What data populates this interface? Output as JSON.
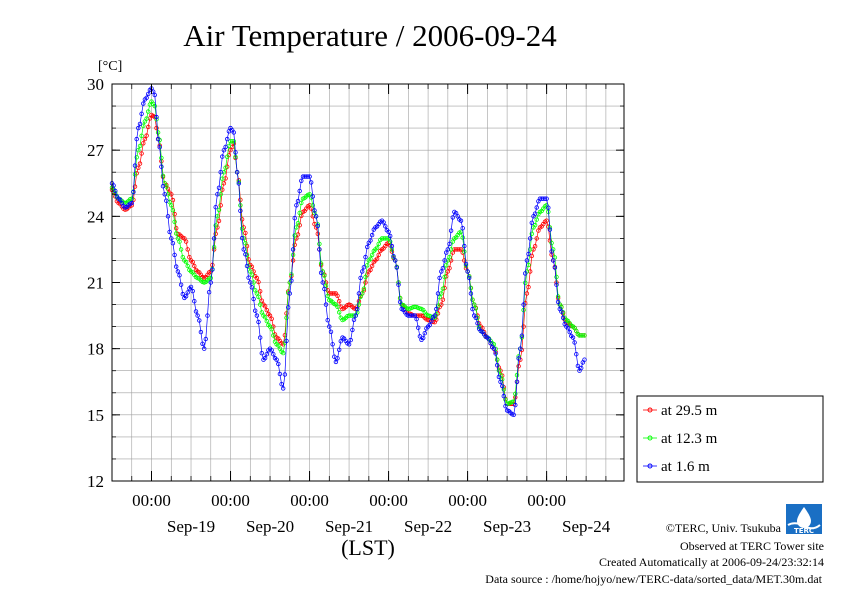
{
  "chart_data": {
    "type": "line",
    "title": "Air Temperature / 2006-09-24",
    "y_unit": "[°C]",
    "xlabel": "(LST)",
    "ylim": [
      12,
      30
    ],
    "y_ticks": [
      12,
      15,
      18,
      21,
      24,
      27,
      30
    ],
    "x_range": [
      "2006-09-18T12:00",
      "2006-09-24T23:30"
    ],
    "x_major_ticks": [
      "2006-09-19T00:00",
      "2006-09-20T00:00",
      "2006-09-21T00:00",
      "2006-09-22T00:00",
      "2006-09-23T00:00",
      "2006-09-24T00:00"
    ],
    "x_tick_time_label": "00:00",
    "day_labels": [
      {
        "at": "2006-09-19T12:00",
        "label": "Sep-19"
      },
      {
        "at": "2006-09-20T12:00",
        "label": "Sep-20"
      },
      {
        "at": "2006-09-21T12:00",
        "label": "Sep-21"
      },
      {
        "at": "2006-09-22T12:00",
        "label": "Sep-22"
      },
      {
        "at": "2006-09-23T12:00",
        "label": "Sep-23"
      },
      {
        "at": "2006-09-24T12:00",
        "label": "Sep-24"
      }
    ],
    "grid": true,
    "legend_position": "right-bottom",
    "series": [
      {
        "name": "at 29.5 m",
        "color": "#ff0000",
        "points": [
          [
            "2006-09-18T12:00",
            25.2
          ],
          [
            "2006-09-18T14:00",
            24.6
          ],
          [
            "2006-09-18T16:00",
            24.3
          ],
          [
            "2006-09-18T18:00",
            24.5
          ],
          [
            "2006-09-18T20:00",
            26.2
          ],
          [
            "2006-09-18T22:00",
            27.5
          ],
          [
            "2006-09-19T00:00",
            28.6
          ],
          [
            "2006-09-19T01:00",
            28.5
          ],
          [
            "2006-09-19T02:00",
            27.5
          ],
          [
            "2006-09-19T04:00",
            25.5
          ],
          [
            "2006-09-19T06:00",
            25.0
          ],
          [
            "2006-09-19T08:00",
            23.2
          ],
          [
            "2006-09-19T10:00",
            23.0
          ],
          [
            "2006-09-19T12:00",
            22.0
          ],
          [
            "2006-09-19T14:00",
            21.5
          ],
          [
            "2006-09-19T16:00",
            21.2
          ],
          [
            "2006-09-19T18:00",
            21.5
          ],
          [
            "2006-09-19T20:00",
            23.5
          ],
          [
            "2006-09-19T22:00",
            25.5
          ],
          [
            "2006-09-20T00:00",
            27.0
          ],
          [
            "2006-09-20T01:00",
            27.3
          ],
          [
            "2006-09-20T02:00",
            26.0
          ],
          [
            "2006-09-20T04:00",
            23.5
          ],
          [
            "2006-09-20T06:00",
            21.8
          ],
          [
            "2006-09-20T08:00",
            21.2
          ],
          [
            "2006-09-20T10:00",
            20.0
          ],
          [
            "2006-09-20T12:00",
            19.5
          ],
          [
            "2006-09-20T14:00",
            18.5
          ],
          [
            "2006-09-20T16:00",
            18.2
          ],
          [
            "2006-09-20T18:00",
            21.0
          ],
          [
            "2006-09-20T20:00",
            23.0
          ],
          [
            "2006-09-20T22:00",
            24.2
          ],
          [
            "2006-09-21T00:00",
            24.5
          ],
          [
            "2006-09-21T02:00",
            23.5
          ],
          [
            "2006-09-21T04:00",
            21.5
          ],
          [
            "2006-09-21T06:00",
            20.5
          ],
          [
            "2006-09-21T08:00",
            20.5
          ],
          [
            "2006-09-21T10:00",
            19.8
          ],
          [
            "2006-09-21T12:00",
            20.0
          ],
          [
            "2006-09-21T14:00",
            19.8
          ],
          [
            "2006-09-21T16:00",
            20.5
          ],
          [
            "2006-09-21T18:00",
            21.5
          ],
          [
            "2006-09-21T20:00",
            22.0
          ],
          [
            "2006-09-21T22:00",
            22.5
          ],
          [
            "2006-09-22T00:00",
            22.8
          ],
          [
            "2006-09-22T02:00",
            22.0
          ],
          [
            "2006-09-22T04:00",
            20.0
          ],
          [
            "2006-09-22T06:00",
            19.6
          ],
          [
            "2006-09-22T08:00",
            19.5
          ],
          [
            "2006-09-22T10:00",
            19.5
          ],
          [
            "2006-09-22T12:00",
            19.3
          ],
          [
            "2006-09-22T14:00",
            19.2
          ],
          [
            "2006-09-22T16:00",
            20.0
          ],
          [
            "2006-09-22T18:00",
            21.5
          ],
          [
            "2006-09-22T20:00",
            22.5
          ],
          [
            "2006-09-22T22:00",
            22.5
          ],
          [
            "2006-09-23T00:00",
            21.5
          ],
          [
            "2006-09-23T02:00",
            20.0
          ],
          [
            "2006-09-23T04:00",
            19.0
          ],
          [
            "2006-09-23T06:00",
            18.5
          ],
          [
            "2006-09-23T08:00",
            18.0
          ],
          [
            "2006-09-23T10:00",
            17.0
          ],
          [
            "2006-09-23T12:00",
            15.5
          ],
          [
            "2006-09-23T14:00",
            15.5
          ],
          [
            "2006-09-23T16:00",
            17.5
          ],
          [
            "2006-09-23T18:00",
            20.5
          ],
          [
            "2006-09-23T20:00",
            22.5
          ],
          [
            "2006-09-23T22:00",
            23.5
          ],
          [
            "2006-09-24T00:00",
            23.8
          ],
          [
            "2006-09-24T02:00",
            22.0
          ],
          [
            "2006-09-24T04:00",
            20.0
          ],
          [
            "2006-09-24T06:00",
            19.2
          ],
          [
            "2006-09-24T08:00",
            19.0
          ],
          [
            "2006-09-24T10:00",
            18.6
          ],
          [
            "2006-09-24T11:30",
            18.6
          ]
        ]
      },
      {
        "name": "at 12.3 m",
        "color": "#00ff00",
        "points": [
          [
            "2006-09-18T12:00",
            25.3
          ],
          [
            "2006-09-18T14:00",
            24.8
          ],
          [
            "2006-09-18T16:00",
            24.6
          ],
          [
            "2006-09-18T18:00",
            24.8
          ],
          [
            "2006-09-18T20:00",
            27.0
          ],
          [
            "2006-09-18T22:00",
            28.3
          ],
          [
            "2006-09-19T00:00",
            29.2
          ],
          [
            "2006-09-19T01:00",
            29.0
          ],
          [
            "2006-09-19T02:00",
            27.8
          ],
          [
            "2006-09-19T04:00",
            25.5
          ],
          [
            "2006-09-19T06:00",
            24.5
          ],
          [
            "2006-09-19T08:00",
            23.0
          ],
          [
            "2006-09-19T10:00",
            22.0
          ],
          [
            "2006-09-19T12:00",
            21.5
          ],
          [
            "2006-09-19T14:00",
            21.2
          ],
          [
            "2006-09-19T16:00",
            21.0
          ],
          [
            "2006-09-19T18:00",
            21.2
          ],
          [
            "2006-09-19T20:00",
            24.0
          ],
          [
            "2006-09-19T22:00",
            26.0
          ],
          [
            "2006-09-20T00:00",
            27.4
          ],
          [
            "2006-09-20T01:00",
            27.4
          ],
          [
            "2006-09-20T02:00",
            26.0
          ],
          [
            "2006-09-20T04:00",
            23.0
          ],
          [
            "2006-09-20T06:00",
            21.5
          ],
          [
            "2006-09-20T08:00",
            20.5
          ],
          [
            "2006-09-20T10:00",
            19.5
          ],
          [
            "2006-09-20T12:00",
            19.0
          ],
          [
            "2006-09-20T14:00",
            18.2
          ],
          [
            "2006-09-20T16:00",
            17.8
          ],
          [
            "2006-09-20T18:00",
            21.0
          ],
          [
            "2006-09-20T20:00",
            23.5
          ],
          [
            "2006-09-20T22:00",
            24.8
          ],
          [
            "2006-09-21T00:00",
            25.0
          ],
          [
            "2006-09-21T02:00",
            24.0
          ],
          [
            "2006-09-21T04:00",
            21.5
          ],
          [
            "2006-09-21T06:00",
            20.2
          ],
          [
            "2006-09-21T08:00",
            20.0
          ],
          [
            "2006-09-21T10:00",
            19.3
          ],
          [
            "2006-09-21T12:00",
            19.5
          ],
          [
            "2006-09-21T14:00",
            19.5
          ],
          [
            "2006-09-21T16:00",
            20.5
          ],
          [
            "2006-09-21T18:00",
            22.0
          ],
          [
            "2006-09-21T20:00",
            22.5
          ],
          [
            "2006-09-21T22:00",
            23.0
          ],
          [
            "2006-09-22T00:00",
            23.0
          ],
          [
            "2006-09-22T02:00",
            22.0
          ],
          [
            "2006-09-22T04:00",
            20.0
          ],
          [
            "2006-09-22T06:00",
            19.8
          ],
          [
            "2006-09-22T08:00",
            19.9
          ],
          [
            "2006-09-22T10:00",
            19.8
          ],
          [
            "2006-09-22T12:00",
            19.5
          ],
          [
            "2006-09-22T14:00",
            19.4
          ],
          [
            "2006-09-22T16:00",
            20.5
          ],
          [
            "2006-09-22T18:00",
            22.0
          ],
          [
            "2006-09-22T20:00",
            23.0
          ],
          [
            "2006-09-22T22:00",
            23.3
          ],
          [
            "2006-09-23T00:00",
            21.5
          ],
          [
            "2006-09-23T02:00",
            20.0
          ],
          [
            "2006-09-23T04:00",
            18.8
          ],
          [
            "2006-09-23T06:00",
            18.5
          ],
          [
            "2006-09-23T08:00",
            18.2
          ],
          [
            "2006-09-23T10:00",
            16.8
          ],
          [
            "2006-09-23T12:00",
            15.5
          ],
          [
            "2006-09-23T14:00",
            15.6
          ],
          [
            "2006-09-23T16:00",
            18.0
          ],
          [
            "2006-09-23T18:00",
            21.5
          ],
          [
            "2006-09-23T20:00",
            23.5
          ],
          [
            "2006-09-23T22:00",
            24.2
          ],
          [
            "2006-09-24T00:00",
            24.5
          ],
          [
            "2006-09-24T02:00",
            22.5
          ],
          [
            "2006-09-24T04:00",
            20.0
          ],
          [
            "2006-09-24T06:00",
            19.3
          ],
          [
            "2006-09-24T08:00",
            19.0
          ],
          [
            "2006-09-24T10:00",
            18.6
          ],
          [
            "2006-09-24T11:30",
            18.6
          ]
        ]
      },
      {
        "name": "at 1.6 m",
        "color": "#0000ff",
        "points": [
          [
            "2006-09-18T12:00",
            25.5
          ],
          [
            "2006-09-18T14:00",
            24.8
          ],
          [
            "2006-09-18T16:00",
            24.4
          ],
          [
            "2006-09-18T18:00",
            24.6
          ],
          [
            "2006-09-18T20:00",
            28.0
          ],
          [
            "2006-09-18T22:00",
            29.3
          ],
          [
            "2006-09-19T00:00",
            29.8
          ],
          [
            "2006-09-19T01:00",
            29.5
          ],
          [
            "2006-09-19T02:00",
            27.5
          ],
          [
            "2006-09-19T04:00",
            25.0
          ],
          [
            "2006-09-19T06:00",
            23.0
          ],
          [
            "2006-09-19T08:00",
            21.5
          ],
          [
            "2006-09-19T10:00",
            20.3
          ],
          [
            "2006-09-19T12:00",
            20.8
          ],
          [
            "2006-09-19T14:00",
            19.5
          ],
          [
            "2006-09-19T16:00",
            18.0
          ],
          [
            "2006-09-19T18:00",
            21.0
          ],
          [
            "2006-09-19T20:00",
            25.0
          ],
          [
            "2006-09-19T22:00",
            27.0
          ],
          [
            "2006-09-20T00:00",
            28.0
          ],
          [
            "2006-09-20T01:00",
            27.8
          ],
          [
            "2006-09-20T02:00",
            26.0
          ],
          [
            "2006-09-20T04:00",
            22.5
          ],
          [
            "2006-09-20T06:00",
            21.0
          ],
          [
            "2006-09-20T08:00",
            19.5
          ],
          [
            "2006-09-20T10:00",
            17.5
          ],
          [
            "2006-09-20T12:00",
            18.0
          ],
          [
            "2006-09-20T14:00",
            17.5
          ],
          [
            "2006-09-20T16:00",
            16.2
          ],
          [
            "2006-09-20T18:00",
            20.5
          ],
          [
            "2006-09-20T20:00",
            24.5
          ],
          [
            "2006-09-20T22:00",
            25.8
          ],
          [
            "2006-09-21T00:00",
            25.8
          ],
          [
            "2006-09-21T02:00",
            24.0
          ],
          [
            "2006-09-21T04:00",
            21.0
          ],
          [
            "2006-09-21T06:00",
            19.0
          ],
          [
            "2006-09-21T08:00",
            17.4
          ],
          [
            "2006-09-21T10:00",
            18.5
          ],
          [
            "2006-09-21T12:00",
            18.2
          ],
          [
            "2006-09-21T14:00",
            19.5
          ],
          [
            "2006-09-21T16:00",
            21.5
          ],
          [
            "2006-09-21T18:00",
            22.8
          ],
          [
            "2006-09-21T20:00",
            23.5
          ],
          [
            "2006-09-21T22:00",
            23.8
          ],
          [
            "2006-09-22T00:00",
            23.3
          ],
          [
            "2006-09-22T02:00",
            22.0
          ],
          [
            "2006-09-22T04:00",
            19.8
          ],
          [
            "2006-09-22T06:00",
            19.5
          ],
          [
            "2006-09-22T08:00",
            19.5
          ],
          [
            "2006-09-22T10:00",
            18.4
          ],
          [
            "2006-09-22T12:00",
            19.0
          ],
          [
            "2006-09-22T14:00",
            19.5
          ],
          [
            "2006-09-22T16:00",
            21.5
          ],
          [
            "2006-09-22T18:00",
            22.5
          ],
          [
            "2006-09-22T20:00",
            24.2
          ],
          [
            "2006-09-22T22:00",
            23.8
          ],
          [
            "2006-09-23T00:00",
            21.5
          ],
          [
            "2006-09-23T02:00",
            19.5
          ],
          [
            "2006-09-23T04:00",
            18.8
          ],
          [
            "2006-09-23T06:00",
            18.5
          ],
          [
            "2006-09-23T08:00",
            18.0
          ],
          [
            "2006-09-23T10:00",
            16.5
          ],
          [
            "2006-09-23T12:00",
            15.2
          ],
          [
            "2006-09-23T14:00",
            15.0
          ],
          [
            "2006-09-23T16:00",
            18.0
          ],
          [
            "2006-09-23T18:00",
            22.0
          ],
          [
            "2006-09-23T20:00",
            24.0
          ],
          [
            "2006-09-23T22:00",
            24.8
          ],
          [
            "2006-09-24T00:00",
            24.8
          ],
          [
            "2006-09-24T02:00",
            22.0
          ],
          [
            "2006-09-24T04:00",
            19.8
          ],
          [
            "2006-09-24T06:00",
            19.0
          ],
          [
            "2006-09-24T08:00",
            18.5
          ],
          [
            "2006-09-24T10:00",
            17.0
          ],
          [
            "2006-09-24T11:30",
            17.5
          ]
        ]
      }
    ]
  },
  "footer": {
    "copyright": "©TERC, Univ. Tsukuba",
    "observed": "Observed at TERC Tower site",
    "created": "Created Automatically at 2006-09-24/23:32:14",
    "source": "Data source : /home/hojyo/new/TERC-data/sorted_data/MET.30m.dat",
    "logo_text": "TERC",
    "logo_color": "#1a6fc4"
  }
}
